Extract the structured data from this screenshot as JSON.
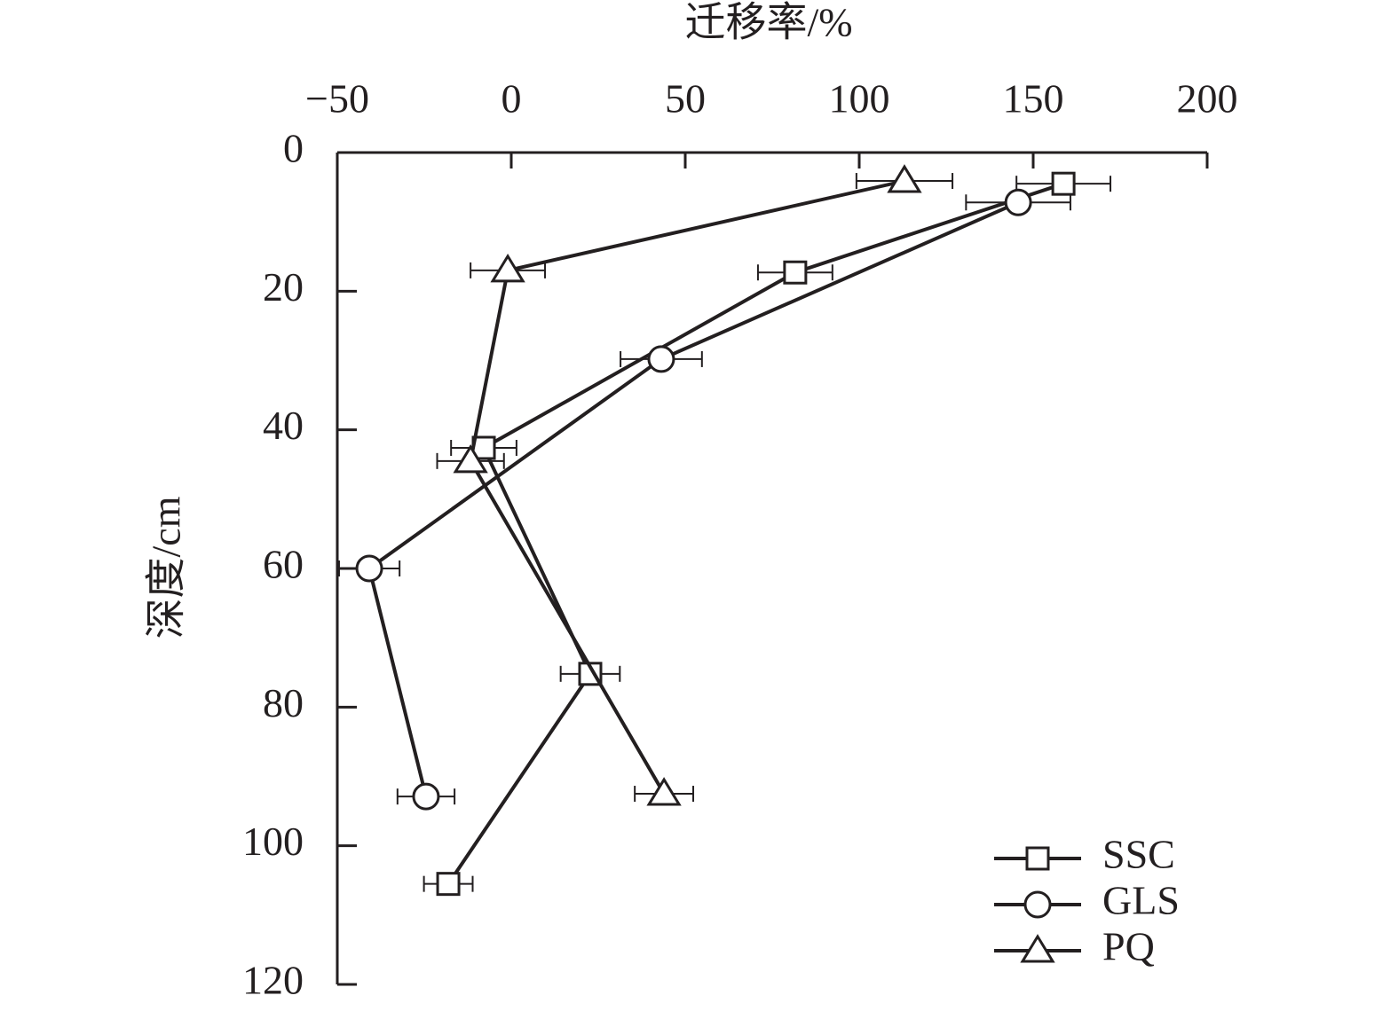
{
  "chart_data": {
    "type": "line",
    "title": "迁移率/%",
    "y_label": "深度/cm",
    "xlim": [
      -50,
      200
    ],
    "xticks": [
      {
        "value": -50,
        "label": "−50"
      },
      0,
      50,
      100,
      150,
      200
    ],
    "ylim": [
      0,
      120
    ],
    "yticks": [
      0,
      20,
      40,
      60,
      80,
      100,
      120
    ],
    "y_inverted": true,
    "legend_position": "lower right",
    "series": [
      {
        "name": "SSC",
        "marker": "square",
        "color": "#231f20",
        "x": [
          158.7,
          81.6,
          -7.9,
          22.7,
          -18.1
        ],
        "y": [
          4.5,
          17.3,
          42.6,
          75.2,
          105.5
        ],
        "xerr": [
          13.5,
          10.7,
          9.4,
          8.5,
          7
        ]
      },
      {
        "name": "GLS",
        "marker": "circle",
        "color": "#231f20",
        "x": [
          145.7,
          43.1,
          -40.8,
          -24.5
        ],
        "y": [
          7.2,
          29.8,
          60,
          92.9
        ],
        "xerr": [
          15,
          11.7,
          8.7,
          8.2
        ]
      },
      {
        "name": "PQ",
        "marker": "triangle",
        "color": "#231f20",
        "x": [
          113,
          -1,
          -11.7,
          43.9
        ],
        "y": [
          4.1,
          17,
          44.5,
          92.5
        ],
        "xerr": [
          13.8,
          10.7,
          9.6,
          8.4
        ]
      }
    ]
  }
}
